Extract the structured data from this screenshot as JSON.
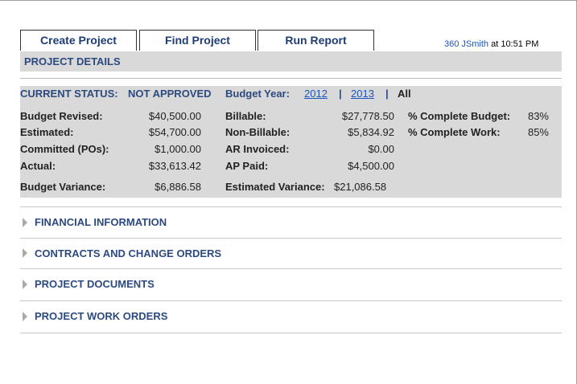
{
  "tabs": [
    "Create Project",
    "Find Project",
    "Run Report"
  ],
  "user": {
    "name": "360 JSmith",
    "time": "at 10:51 PM"
  },
  "section_title": "PROJECT DETAILS",
  "status": {
    "label": "CURRENT STATUS:",
    "value": "NOT APPROVED",
    "budget_year_label": "Budget Year:",
    "years": [
      "2012",
      "2013",
      "All"
    ],
    "separator": "|"
  },
  "summary": [
    [
      "Budget Revised:",
      "$40,500.00",
      "Billable:",
      "$27,778.50",
      "% Complete Budget:",
      "83%"
    ],
    [
      "Estimated:",
      "$54,700.00",
      "Non-Billable:",
      "$5,834.92",
      "% Complete Work:",
      "85%"
    ],
    [
      "Committed (POs):",
      "$1,000.00",
      "AR Invoiced:",
      "$0.00"
    ],
    [
      "Actual:",
      "$33,613.42",
      "AP Paid:",
      "$4,500.00"
    ],
    [
      "Budget Variance:",
      "$6,886.58",
      "Estimated Variance:",
      "$21,086.58"
    ]
  ],
  "sections": [
    "FINANCIAL INFORMATION",
    "CONTRACTS AND CHANGE ORDERS",
    "PROJECT DOCUMENTS",
    "PROJECT WORK ORDERS"
  ]
}
